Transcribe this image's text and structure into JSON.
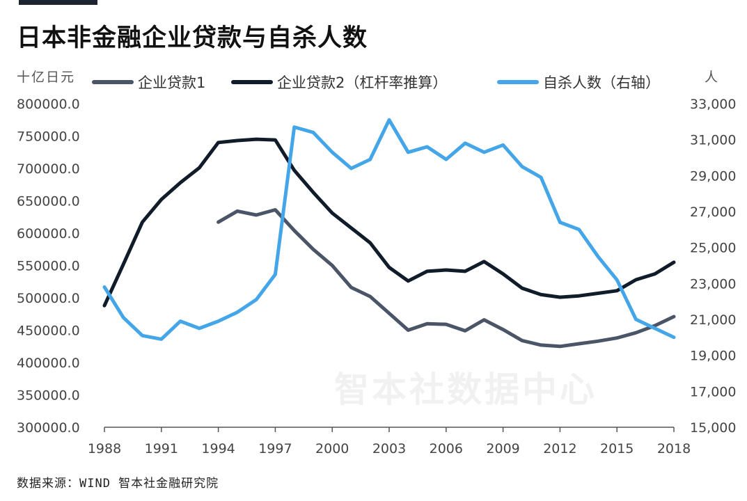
{
  "header": {
    "title": "日本非金融企业贷款与自杀人数",
    "unit_left": "十亿日元",
    "unit_right": "人"
  },
  "footer": {
    "source": "数据来源：WIND 智本社金融研究院",
    "watermark": "智本社数据中心"
  },
  "colors": {
    "loan1": "#4b5568",
    "loan2": "#101c2a",
    "suicide": "#44a6e8",
    "axis": "#555555",
    "grid": "#e6e6e6"
  },
  "chart_data": {
    "type": "line",
    "title": "日本非金融企业贷款与自杀人数",
    "legend_position": "top",
    "grid": false,
    "x_axis": {
      "range": [
        1988,
        2018
      ],
      "ticks": [
        "1988",
        "1991",
        "1994",
        "1997",
        "2000",
        "2003",
        "2006",
        "2009",
        "2012",
        "2015",
        "2018"
      ]
    },
    "y_left": {
      "label": "十亿日元",
      "range": [
        300000,
        800000
      ],
      "ticks": [
        "300000.0",
        "350000.0",
        "400000.0",
        "450000.0",
        "500000.0",
        "550000.0",
        "600000.0",
        "650000.0",
        "700000.0",
        "750000.0",
        "800000.0"
      ]
    },
    "y_right": {
      "label": "人",
      "range": [
        15000,
        33000
      ],
      "ticks": [
        "15,000",
        "17,000",
        "19,000",
        "21,000",
        "23,000",
        "25,000",
        "27,000",
        "29,000",
        "31,000",
        "33,000"
      ]
    },
    "series": [
      {
        "name": "企业贷款1",
        "axis": "left",
        "color": "#4b5568",
        "points": [
          [
            1994,
            617000
          ],
          [
            1995,
            634000
          ],
          [
            1996,
            628000
          ],
          [
            1997,
            636000
          ],
          [
            1998,
            604000
          ],
          [
            1999,
            575000
          ],
          [
            2000,
            550000
          ],
          [
            2001,
            516000
          ],
          [
            2002,
            502000
          ],
          [
            2003,
            476000
          ],
          [
            2004,
            450000
          ],
          [
            2005,
            460000
          ],
          [
            2006,
            459000
          ],
          [
            2007,
            449000
          ],
          [
            2008,
            466000
          ],
          [
            2009,
            451000
          ],
          [
            2010,
            434000
          ],
          [
            2011,
            427000
          ],
          [
            2012,
            425000
          ],
          [
            2013,
            429000
          ],
          [
            2014,
            433000
          ],
          [
            2015,
            438000
          ],
          [
            2016,
            446000
          ],
          [
            2017,
            457000
          ],
          [
            2018,
            471000
          ]
        ]
      },
      {
        "name": "企业贷款2（杠杆率推算）",
        "axis": "left",
        "color": "#101c2a",
        "points": [
          [
            1988,
            488000
          ],
          [
            1989,
            552000
          ],
          [
            1990,
            617000
          ],
          [
            1991,
            652000
          ],
          [
            1992,
            678000
          ],
          [
            1993,
            701000
          ],
          [
            1994,
            740000
          ],
          [
            1995,
            743000
          ],
          [
            1996,
            745000
          ],
          [
            1997,
            744000
          ],
          [
            1998,
            697000
          ],
          [
            1999,
            663000
          ],
          [
            2000,
            631000
          ],
          [
            2001,
            608000
          ],
          [
            2002,
            585000
          ],
          [
            2003,
            547000
          ],
          [
            2004,
            526000
          ],
          [
            2005,
            541000
          ],
          [
            2006,
            543000
          ],
          [
            2007,
            541000
          ],
          [
            2008,
            556000
          ],
          [
            2009,
            537000
          ],
          [
            2010,
            515000
          ],
          [
            2011,
            505000
          ],
          [
            2012,
            501000
          ],
          [
            2013,
            503000
          ],
          [
            2014,
            507000
          ],
          [
            2015,
            511000
          ],
          [
            2016,
            528000
          ],
          [
            2017,
            537000
          ],
          [
            2018,
            555000
          ]
        ]
      },
      {
        "name": "自杀人数（右轴）",
        "axis": "right",
        "color": "#44a6e8",
        "points": [
          [
            1988,
            22800
          ],
          [
            1989,
            21100
          ],
          [
            1990,
            20100
          ],
          [
            1991,
            19900
          ],
          [
            1992,
            20900
          ],
          [
            1993,
            20500
          ],
          [
            1994,
            20900
          ],
          [
            1995,
            21400
          ],
          [
            1996,
            22100
          ],
          [
            1997,
            23500
          ],
          [
            1998,
            31700
          ],
          [
            1999,
            31400
          ],
          [
            2000,
            30300
          ],
          [
            2001,
            29400
          ],
          [
            2002,
            29900
          ],
          [
            2003,
            32100
          ],
          [
            2004,
            30300
          ],
          [
            2005,
            30600
          ],
          [
            2006,
            29900
          ],
          [
            2007,
            30800
          ],
          [
            2008,
            30300
          ],
          [
            2009,
            30700
          ],
          [
            2010,
            29500
          ],
          [
            2011,
            28900
          ],
          [
            2012,
            26400
          ],
          [
            2013,
            26000
          ],
          [
            2014,
            24500
          ],
          [
            2015,
            23200
          ],
          [
            2016,
            21000
          ],
          [
            2017,
            20500
          ],
          [
            2018,
            20000
          ]
        ]
      }
    ]
  }
}
